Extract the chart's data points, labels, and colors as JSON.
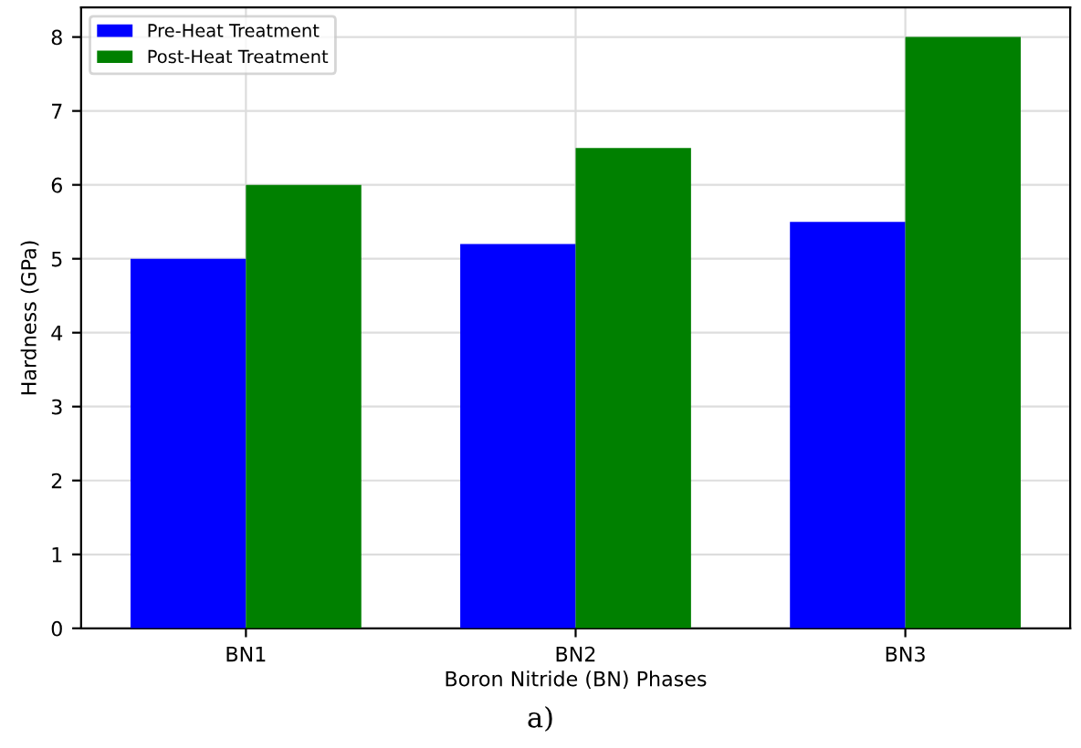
{
  "chart_data": {
    "type": "bar",
    "xlabel": "Boron Nitride (BN) Phases",
    "ylabel": "Hardness (GPa)",
    "categories": [
      "BN1",
      "BN2",
      "BN3"
    ],
    "series": [
      {
        "name": "Pre-Heat Treatment",
        "color": "#0000ff",
        "values": [
          5,
          5.2,
          5.5
        ]
      },
      {
        "name": "Post-Heat Treatment",
        "color": "#008000",
        "values": [
          6,
          6.5,
          8
        ]
      }
    ],
    "ylim": [
      0,
      8.4
    ],
    "yticks": [
      0,
      1,
      2,
      3,
      4,
      5,
      6,
      7,
      8
    ],
    "grid": true,
    "legend": "top left",
    "annotations": [
      "a)"
    ]
  }
}
